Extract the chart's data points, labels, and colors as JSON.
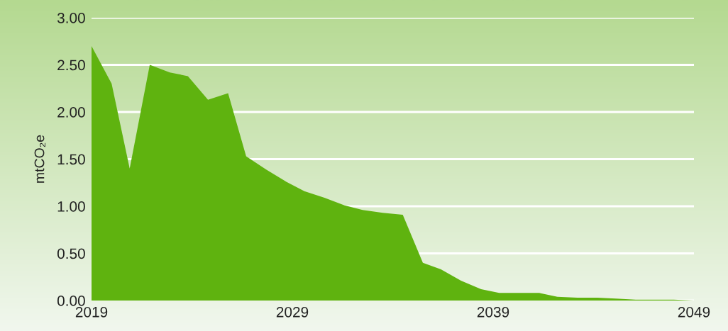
{
  "chart_data": {
    "type": "area",
    "ylabel": "mtCO₂e",
    "x": [
      2019,
      2020.0,
      2020.9,
      2021.9,
      2022.9,
      2023.8,
      2024.8,
      2025.8,
      2026.7,
      2027.7,
      2028.7,
      2029.6,
      2030.6,
      2031.6,
      2032.5,
      2033.5,
      2034.5,
      2035.5,
      2036.4,
      2037.4,
      2038.4,
      2039.3,
      2040.3,
      2041.3,
      2042.2,
      2043.2,
      2044.2,
      2045.1,
      2046.1,
      2047.1,
      2048.0,
      2049
    ],
    "series": [
      {
        "color": "#5fb30f",
        "values": [
          2.7,
          2.3,
          1.4,
          2.5,
          2.42,
          2.38,
          2.13,
          2.2,
          1.53,
          1.39,
          1.26,
          1.16,
          1.09,
          1.01,
          0.96,
          0.93,
          0.91,
          0.4,
          0.33,
          0.21,
          0.12,
          0.08,
          0.08,
          0.08,
          0.04,
          0.03,
          0.03,
          0.02,
          0.01,
          0.01,
          0.01,
          0.0
        ]
      }
    ],
    "xlim": [
      2019,
      2049
    ],
    "xticks": [
      2019,
      2029,
      2039,
      2049
    ],
    "ylim": [
      0,
      3
    ],
    "yticks": [
      {
        "value": 0,
        "label": "0.00"
      },
      {
        "value": 0.5,
        "label": "0.50"
      },
      {
        "value": 1,
        "label": "1.00"
      },
      {
        "value": 1.5,
        "label": "1.50"
      },
      {
        "value": 2,
        "label": "2.00"
      },
      {
        "value": 2.5,
        "label": "2.50"
      },
      {
        "value": 3,
        "label": "3.00"
      }
    ],
    "grid": "y"
  }
}
